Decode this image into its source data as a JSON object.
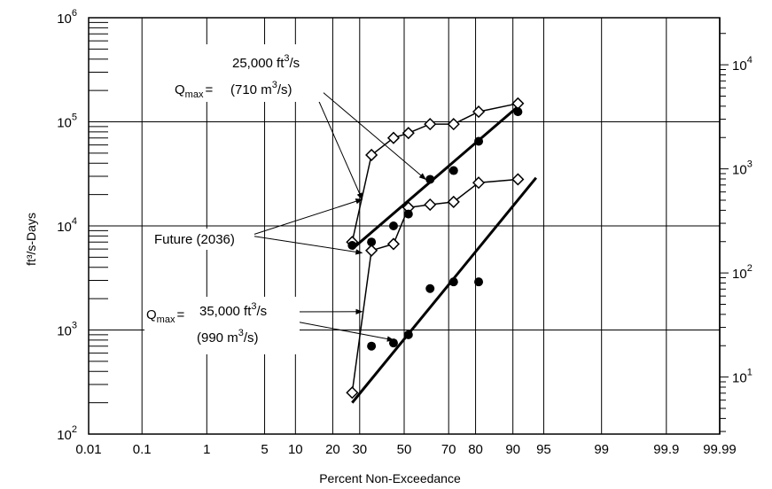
{
  "chart_data": {
    "type": "scatter",
    "title": "",
    "xlabel": "Percent Non-Exceedance",
    "ylabel": "ft³/s-Days",
    "x_scale": "normal-probability",
    "y_scale": "log",
    "xlim": [
      0.01,
      99.99
    ],
    "ylim": [
      100,
      1000000
    ],
    "y2lim_m3s_days": [
      2.8317,
      28317
    ],
    "grid": true,
    "x_ticks": [
      {
        "value": 0.01,
        "label": "0.01"
      },
      {
        "value": 0.1,
        "label": "0.1"
      },
      {
        "value": 1,
        "label": "1"
      },
      {
        "value": 5,
        "label": "5"
      },
      {
        "value": 10,
        "label": "10"
      },
      {
        "value": 20,
        "label": "20"
      },
      {
        "value": 30,
        "label": "30"
      },
      {
        "value": 50,
        "label": "50"
      },
      {
        "value": 70,
        "label": "70"
      },
      {
        "value": 80,
        "label": "80"
      },
      {
        "value": 90,
        "label": "90"
      },
      {
        "value": 95,
        "label": "95"
      },
      {
        "value": 99,
        "label": "99"
      },
      {
        "value": 99.9,
        "label": "99.9"
      },
      {
        "value": 99.99,
        "label": "99.99"
      }
    ],
    "y_ticks": [
      {
        "value": 100,
        "base": "10",
        "exp": "2"
      },
      {
        "value": 1000,
        "base": "10",
        "exp": "3"
      },
      {
        "value": 10000,
        "base": "10",
        "exp": "4"
      },
      {
        "value": 100000,
        "base": "10",
        "exp": "5"
      },
      {
        "value": 1000000,
        "base": "10",
        "exp": "6"
      }
    ],
    "y2_ticks": [
      {
        "value": 10,
        "base": "10",
        "exp": "1"
      },
      {
        "value": 100,
        "base": "10",
        "exp": "2"
      },
      {
        "value": 1000,
        "base": "10",
        "exp": "3"
      },
      {
        "value": 10000,
        "base": "10",
        "exp": "4"
      }
    ],
    "series": [
      {
        "group": "Qmax 25,000 ft³/s",
        "marker": "diamond",
        "connected": true,
        "points": [
          [
            27,
            7000
          ],
          [
            35,
            48000
          ],
          [
            45,
            70000
          ],
          [
            52,
            78000
          ],
          [
            62,
            95000
          ],
          [
            72,
            95000
          ],
          [
            81,
            125000
          ],
          [
            91,
            150000
          ]
        ]
      },
      {
        "group": "Qmax 25,000 ft³/s",
        "marker": "filled-circle",
        "connected": false,
        "points": [
          [
            27,
            6500
          ],
          [
            62,
            28000
          ],
          [
            72,
            34000
          ],
          [
            81,
            65000
          ],
          [
            91,
            125000
          ]
        ]
      },
      {
        "group": "Qmax 35,000 ft³/s",
        "marker": "diamond",
        "connected": true,
        "points": [
          [
            27,
            250
          ],
          [
            35,
            5800
          ],
          [
            45,
            6700
          ],
          [
            52,
            15000
          ],
          [
            62,
            16000
          ],
          [
            72,
            17000
          ],
          [
            81,
            26000
          ],
          [
            91,
            28000
          ]
        ]
      },
      {
        "group": "Qmax 35,000 ft³/s",
        "marker": "filled-circle",
        "connected": false,
        "points": [
          [
            35,
            7000
          ],
          [
            35,
            700
          ],
          [
            45,
            10000
          ],
          [
            45,
            750
          ],
          [
            52,
            13000
          ],
          [
            52,
            900
          ],
          [
            62,
            2500
          ],
          [
            72,
            2900
          ],
          [
            81,
            2900
          ]
        ]
      }
    ],
    "fit_lines": [
      {
        "group": "Qmax 25,000 ft³/s",
        "from": [
          27,
          6000
        ],
        "to": [
          91,
          140000
        ]
      },
      {
        "group": "Qmax 35,000 ft³/s",
        "from": [
          27,
          200
        ],
        "to": [
          94,
          29000
        ]
      }
    ],
    "annotations": {
      "q25": {
        "q": "Q",
        "sub": "max",
        "eq": "=",
        "val": "25,000 ft",
        "sup": "3",
        "unit": "/s",
        "metric_open": "(710 m",
        "metric_sup": "3",
        "metric_close": "/s)"
      },
      "future": "Future (2036)",
      "q35": {
        "q": "Q",
        "sub": "max",
        "eq": "=",
        "val": "35,000 ft",
        "sup": "3",
        "unit": "/s",
        "metric_open": "(990 m",
        "metric_sup": "3",
        "metric_close": "/s)"
      }
    }
  }
}
